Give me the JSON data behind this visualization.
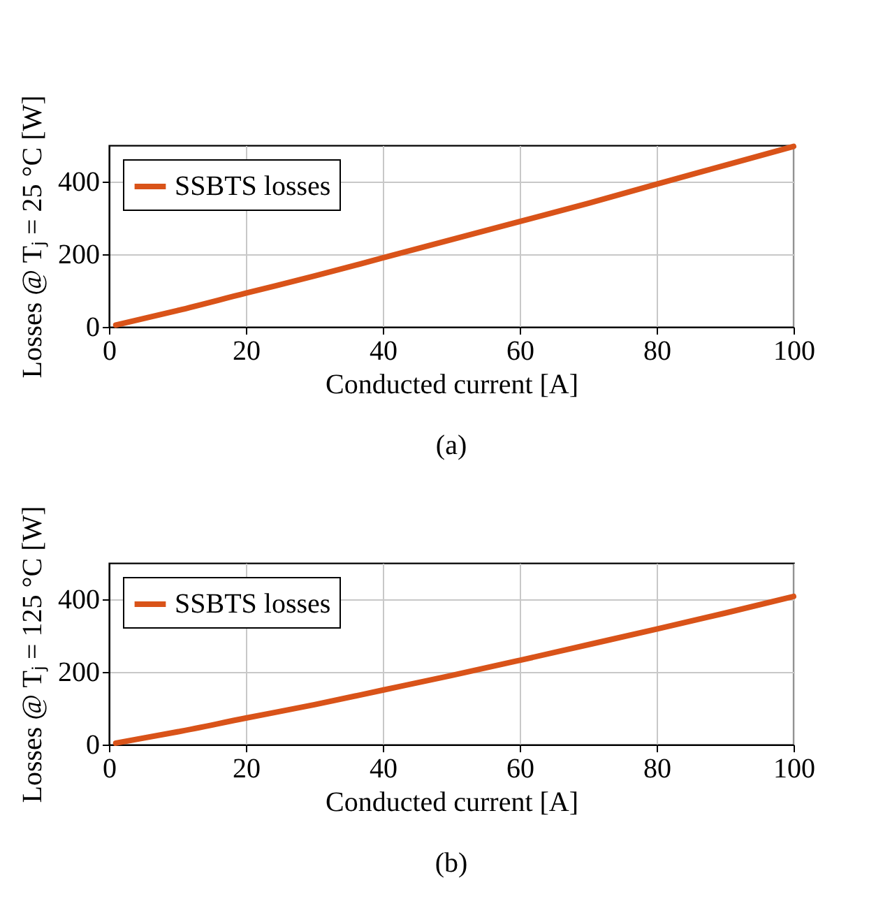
{
  "chart_data": [
    {
      "type": "line",
      "xlabel": "Conducted current [A]",
      "ylabel": "Losses @ Tⱼ = 25 °C [W]",
      "annotations": [
        "(a)"
      ],
      "x": [
        1,
        10,
        20,
        30,
        40,
        50,
        60,
        70,
        80,
        90,
        100
      ],
      "xlim": [
        0,
        100
      ],
      "xticks": [
        0,
        20,
        40,
        60,
        80,
        100
      ],
      "ylim": [
        0,
        500
      ],
      "yticks": [
        0,
        200,
        400
      ],
      "grid": true,
      "legend": "top left",
      "series": [
        {
          "name": "SSBTS losses",
          "color": "#d95319",
          "values": [
            5,
            45,
            93,
            140,
            190,
            240,
            290,
            340,
            393,
            445,
            497
          ]
        }
      ]
    },
    {
      "type": "line",
      "xlabel": "Conducted current [A]",
      "ylabel": "Losses @ Tⱼ = 125 °C [W]",
      "annotations": [
        "(b)"
      ],
      "x": [
        1,
        10,
        20,
        30,
        40,
        50,
        60,
        70,
        80,
        90,
        100
      ],
      "xlim": [
        0,
        100
      ],
      "xticks": [
        0,
        20,
        40,
        60,
        80,
        100
      ],
      "ylim": [
        0,
        500
      ],
      "yticks": [
        0,
        200,
        400
      ],
      "grid": true,
      "legend": "top left",
      "series": [
        {
          "name": "SSBTS losses",
          "color": "#d95319",
          "values": [
            4,
            35,
            73,
            110,
            150,
            190,
            232,
            275,
            318,
            362,
            408
          ]
        }
      ]
    }
  ]
}
